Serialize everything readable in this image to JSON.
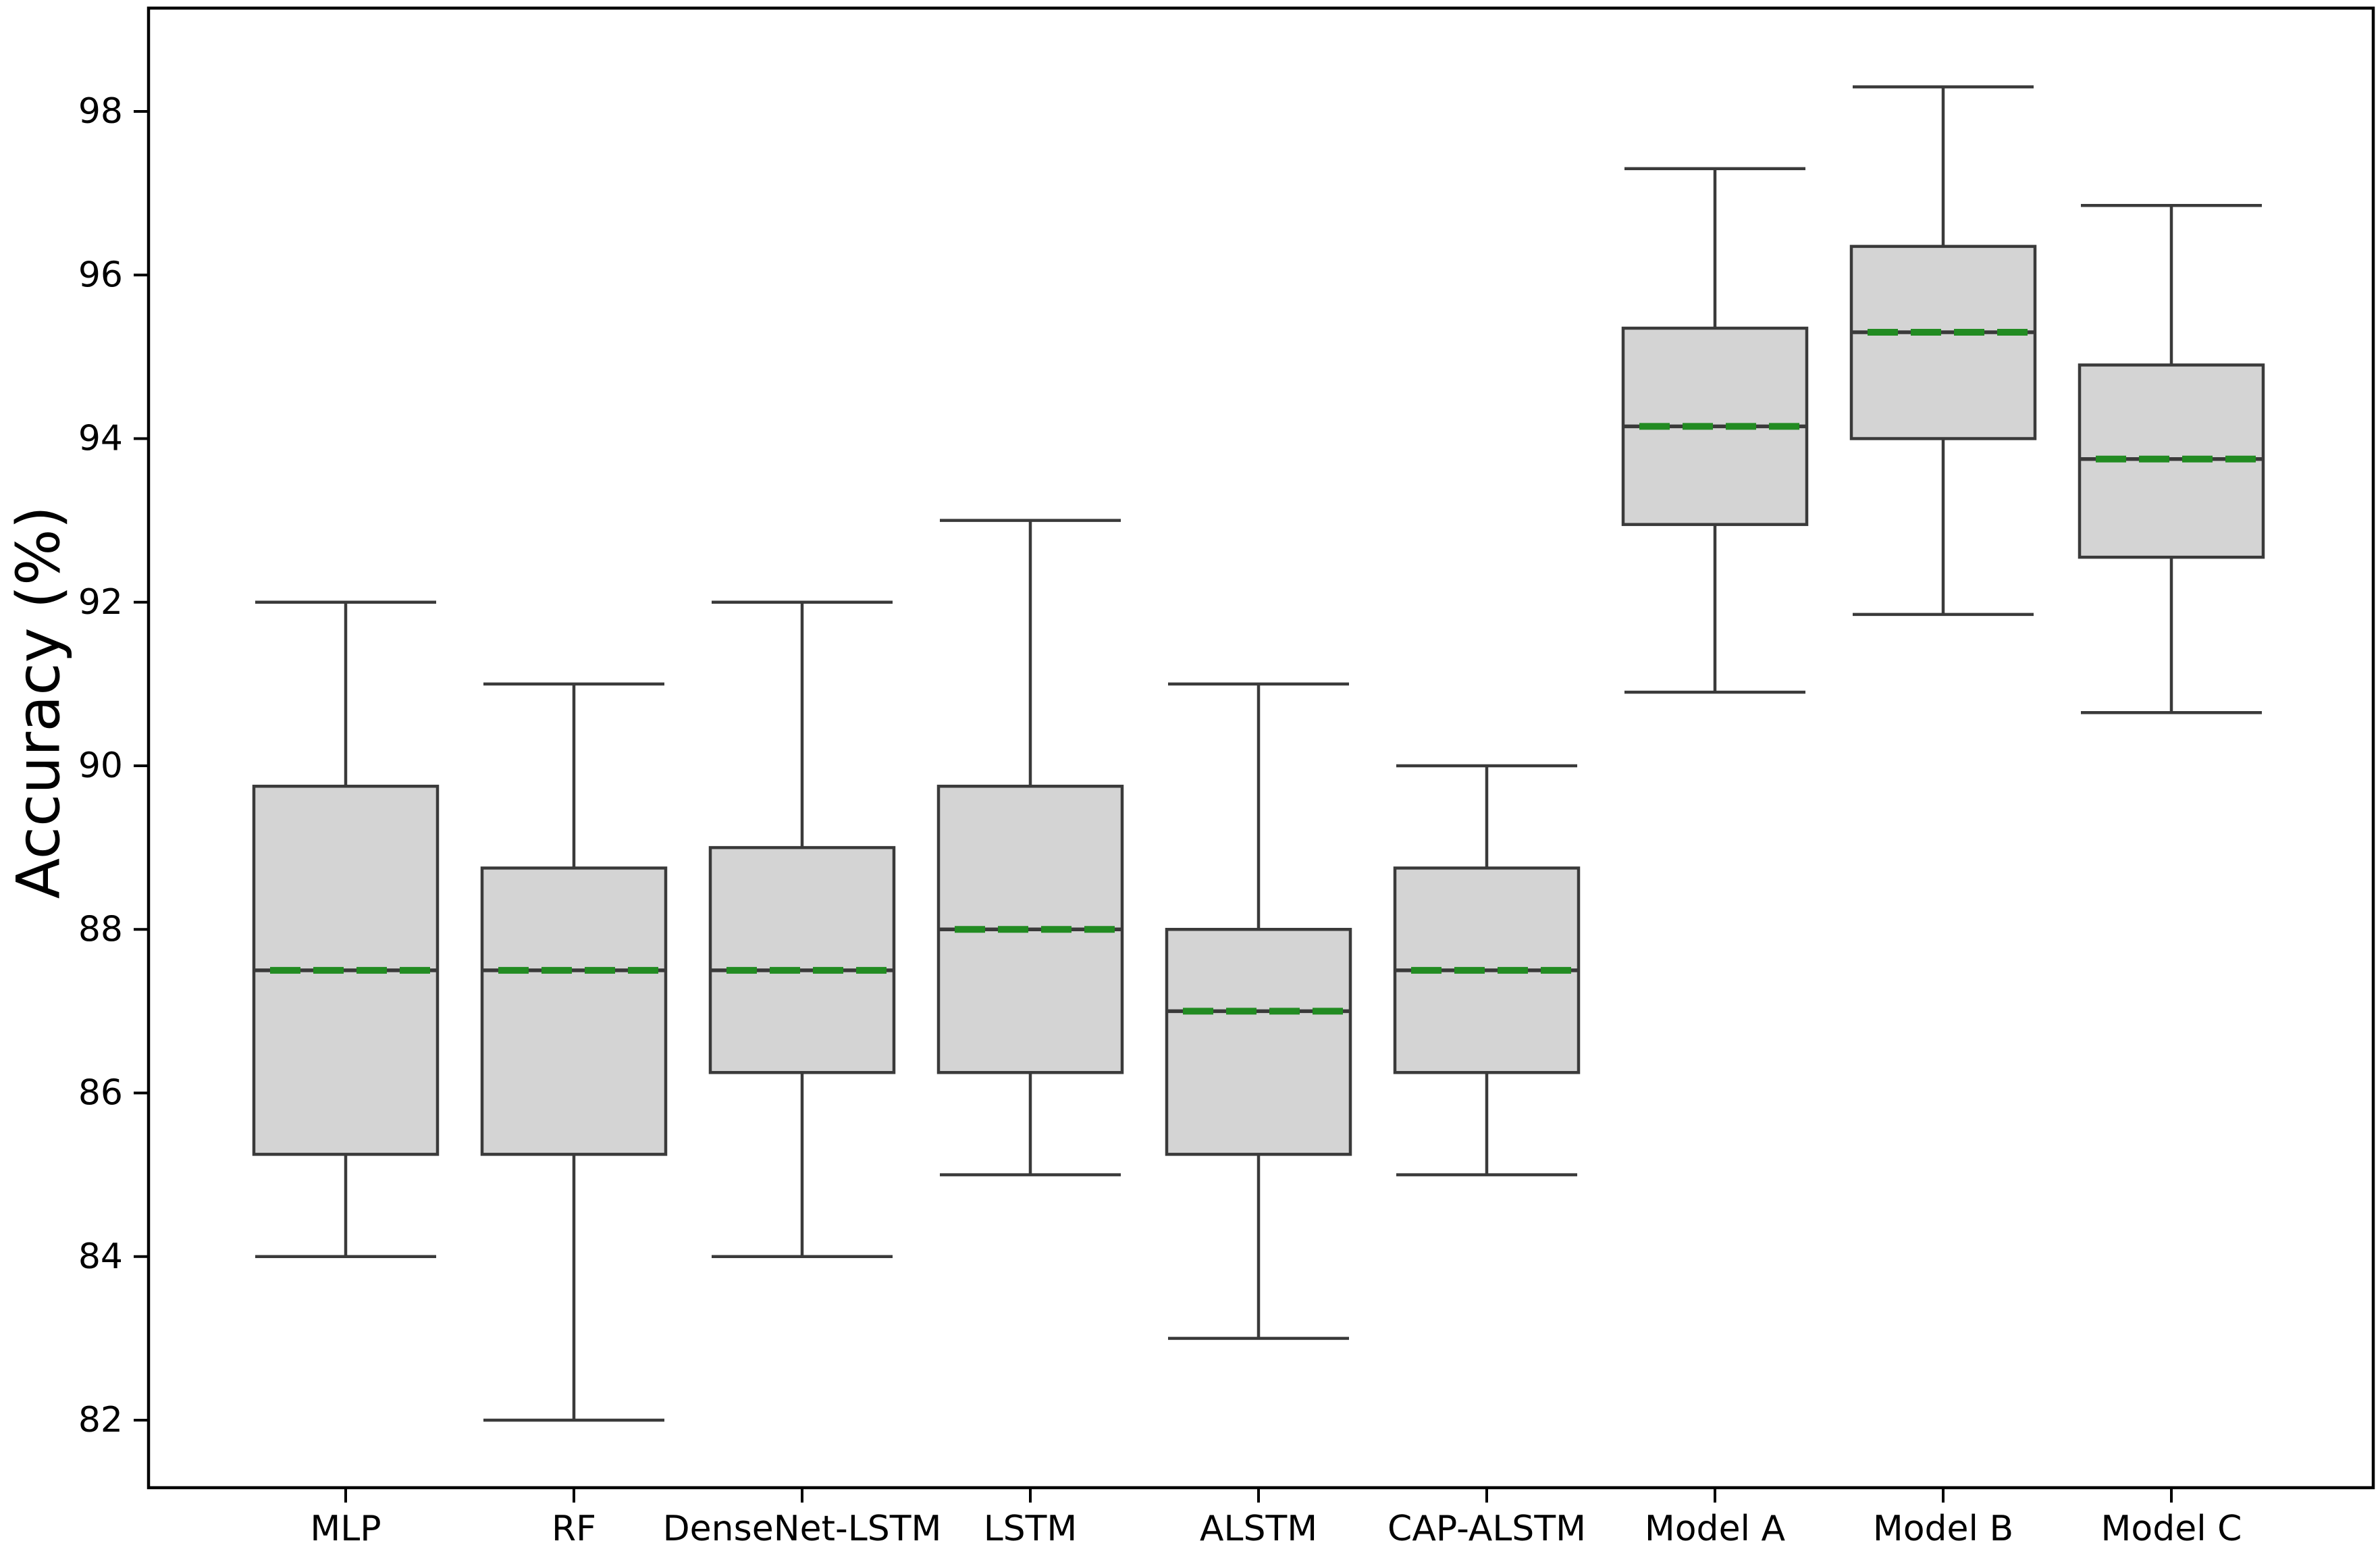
{
  "figure": {
    "background": "#ffffff"
  },
  "chart_data": {
    "type": "box",
    "title": "",
    "xlabel": "",
    "ylabel": "Accuracy (%)",
    "grid": false,
    "legend": null,
    "ylim": [
      81.17,
      99.26
    ],
    "yticks": [
      82,
      84,
      86,
      88,
      90,
      92,
      94,
      96,
      98
    ],
    "categories": [
      "MLP",
      "RF",
      "DenseNet-LSTM",
      "LSTM",
      "ALSTM",
      "CAP-ALSTM",
      "Model A",
      "Model B",
      "Model C"
    ],
    "series": [
      {
        "name": "MLP",
        "whislo": 84.0,
        "q1": 85.25,
        "med": 87.5,
        "q3": 89.75,
        "whishi": 92.0,
        "mean": 87.5
      },
      {
        "name": "RF",
        "whislo": 82.0,
        "q1": 85.25,
        "med": 87.5,
        "q3": 88.75,
        "whishi": 91.0,
        "mean": 87.5
      },
      {
        "name": "DenseNet-LSTM",
        "whislo": 84.0,
        "q1": 86.25,
        "med": 87.5,
        "q3": 89.0,
        "whishi": 92.0,
        "mean": 87.5
      },
      {
        "name": "LSTM",
        "whislo": 85.0,
        "q1": 86.25,
        "med": 88.0,
        "q3": 89.75,
        "whishi": 93.0,
        "mean": 88.0
      },
      {
        "name": "ALSTM",
        "whislo": 83.0,
        "q1": 85.25,
        "med": 87.0,
        "q3": 88.0,
        "whishi": 91.0,
        "mean": 87.0
      },
      {
        "name": "CAP-ALSTM",
        "whislo": 85.0,
        "q1": 86.25,
        "med": 87.5,
        "q3": 88.75,
        "whishi": 90.0,
        "mean": 87.5
      },
      {
        "name": "Model A",
        "whislo": 90.9,
        "q1": 92.95,
        "med": 94.15,
        "q3": 95.35,
        "whishi": 97.3,
        "mean": 94.15
      },
      {
        "name": "Model B",
        "whislo": 91.85,
        "q1": 94.0,
        "med": 95.3,
        "q3": 96.35,
        "whishi": 98.3,
        "mean": 95.3
      },
      {
        "name": "Model C",
        "whislo": 90.65,
        "q1": 92.55,
        "med": 93.75,
        "q3": 94.9,
        "whishi": 96.85,
        "mean": 93.75
      }
    ],
    "colors": {
      "box_fill": "#d4d4d4",
      "box_edge": "#3a3a3a",
      "whisker": "#3a3a3a",
      "median": "#3a3a3a",
      "mean": "#228B22",
      "spine": "#000000",
      "tick": "#000000"
    }
  }
}
